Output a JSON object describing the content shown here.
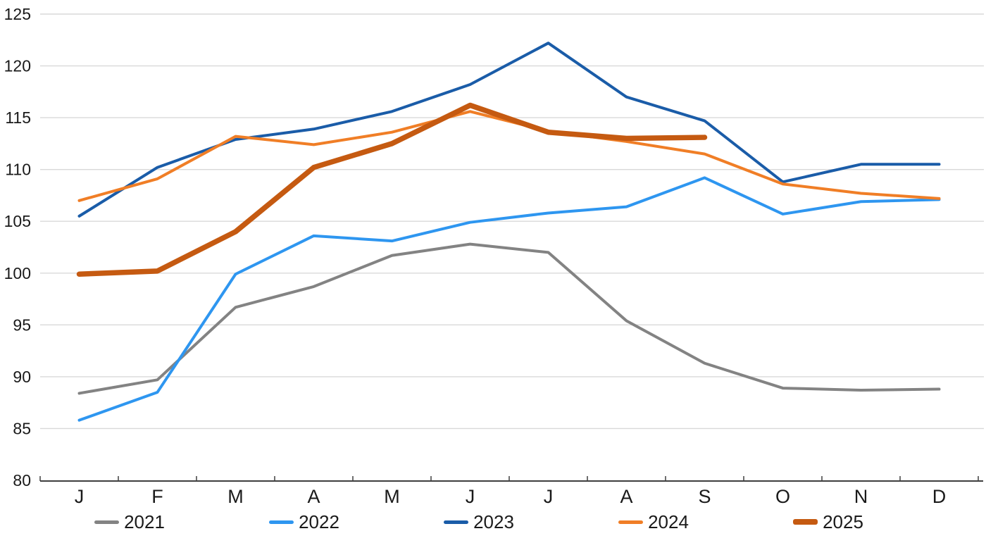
{
  "chart_data": {
    "type": "line",
    "title": "",
    "xlabel": "",
    "ylabel": "",
    "x_categories": [
      "J",
      "F",
      "M",
      "A",
      "M",
      "J",
      "J",
      "A",
      "S",
      "O",
      "N",
      "D"
    ],
    "y_tick_labels": [
      "80",
      "85",
      "90",
      "95",
      "100",
      "105",
      "110",
      "115",
      "120",
      "125"
    ],
    "ylim": [
      80,
      125
    ],
    "ytick_step": 5,
    "grid": true,
    "legend_position": "bottom",
    "background_color": "#FFFFFF",
    "gridline_color": "#D9D9D9",
    "axis_color": "#3F3F3F",
    "label_color": "#1A1A1A",
    "series": [
      {
        "name": "2021",
        "color": "#838383",
        "stroke_width": 4,
        "values": [
          88.4,
          89.7,
          96.7,
          98.7,
          101.7,
          102.8,
          102.0,
          95.4,
          91.3,
          88.9,
          88.7,
          88.8
        ]
      },
      {
        "name": "2022",
        "color": "#2E96F0",
        "stroke_width": 4,
        "values": [
          85.8,
          88.5,
          99.9,
          103.6,
          103.1,
          104.9,
          105.8,
          106.4,
          109.2,
          105.7,
          106.9,
          107.1
        ]
      },
      {
        "name": "2023",
        "color": "#1A5CA8",
        "stroke_width": 4,
        "values": [
          105.5,
          110.2,
          112.9,
          113.9,
          115.6,
          118.2,
          122.2,
          117.0,
          114.7,
          108.8,
          110.5,
          110.5
        ]
      },
      {
        "name": "2024",
        "color": "#F07E26",
        "stroke_width": 4,
        "values": [
          107.0,
          109.1,
          113.2,
          112.4,
          113.6,
          115.6,
          113.7,
          112.7,
          111.5,
          108.6,
          107.7,
          107.2
        ]
      },
      {
        "name": "2025",
        "color": "#C55A11",
        "stroke_width": 7.5,
        "values": [
          99.9,
          100.2,
          104.0,
          110.2,
          112.5,
          116.2,
          113.6,
          113.0,
          113.1,
          null,
          null,
          null
        ]
      }
    ]
  }
}
